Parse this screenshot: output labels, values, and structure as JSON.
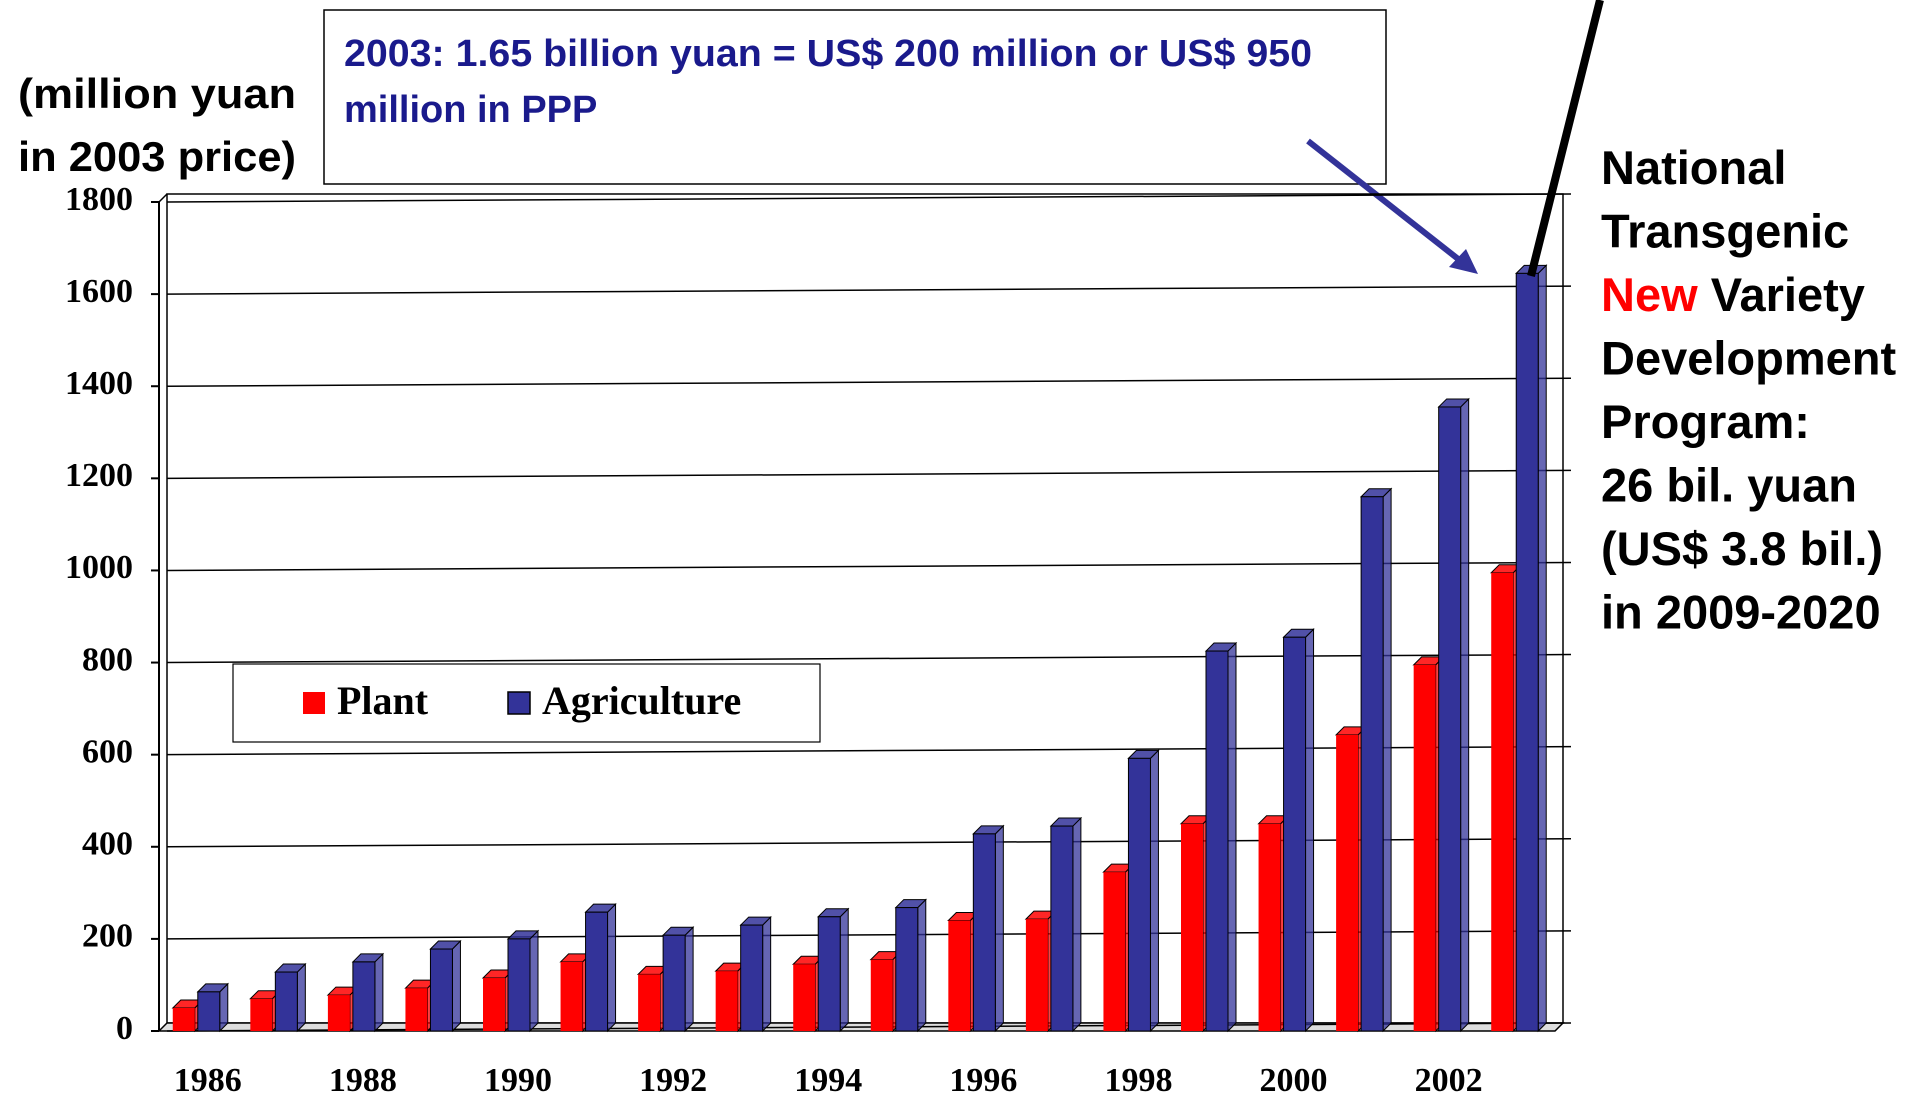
{
  "chart_data": {
    "type": "bar",
    "y_label_lines": [
      "(million yuan",
      "in 2003 price)"
    ],
    "annotation_lines": [
      "2003: 1.65 billion yuan = US$ 200 million or US$ 950",
      "million in PPP"
    ],
    "side_note_lines": [
      [
        "National"
      ],
      [
        "Transgenic"
      ],
      [
        {
          "text": "New",
          "color": "#ff0000"
        },
        " Variety"
      ],
      [
        "Development"
      ],
      [
        "Program:"
      ],
      [
        "26 bil. yuan"
      ],
      [
        "(US$ 3.8 bil.)"
      ],
      [
        "in 2009-2020"
      ]
    ],
    "categories": [
      "1986",
      null,
      "1988",
      null,
      "1990",
      null,
      "1992",
      null,
      "1994",
      null,
      "1996",
      null,
      "1998",
      null,
      "2000",
      null,
      "2002",
      null
    ],
    "series": [
      {
        "name": "Plant",
        "color": "#ff0000",
        "values": [
          50,
          70,
          78,
          93,
          115,
          150,
          123,
          130,
          145,
          155,
          240,
          243,
          345,
          450,
          450,
          643,
          795,
          995
        ]
      },
      {
        "name": "Agriculture",
        "color": "#333399",
        "values": [
          85,
          128,
          150,
          178,
          200,
          258,
          208,
          230,
          248,
          268,
          428,
          445,
          592,
          825,
          855,
          1160,
          1355,
          1645
        ]
      }
    ],
    "ylim": [
      0,
      1800
    ],
    "yticks": [
      0,
      200,
      400,
      600,
      800,
      1000,
      1200,
      1400,
      1600,
      1800
    ],
    "grid": true
  }
}
